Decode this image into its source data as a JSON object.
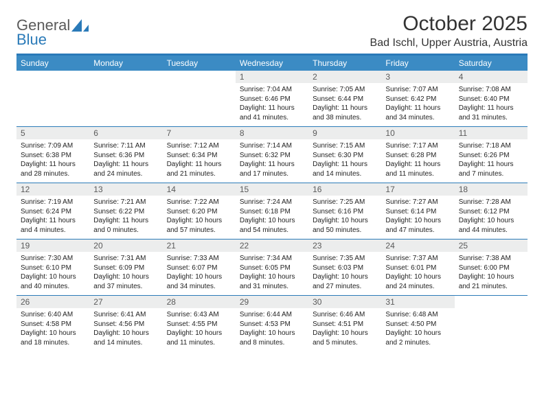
{
  "logo": {
    "word1": "General",
    "word2": "Blue"
  },
  "title": "October 2025",
  "location": "Bad Ischl, Upper Austria, Austria",
  "dayNames": [
    "Sunday",
    "Monday",
    "Tuesday",
    "Wednesday",
    "Thursday",
    "Friday",
    "Saturday"
  ],
  "colors": {
    "headerBar": "#3b8bc4",
    "accent": "#2a7ab8",
    "daynumBg": "#eceded",
    "text": "#222222"
  },
  "weeks": [
    [
      {
        "n": "",
        "empty": true
      },
      {
        "n": "",
        "empty": true
      },
      {
        "n": "",
        "empty": true
      },
      {
        "n": "1",
        "sr": "7:04 AM",
        "ss": "6:46 PM",
        "dl": "11 hours and 41 minutes."
      },
      {
        "n": "2",
        "sr": "7:05 AM",
        "ss": "6:44 PM",
        "dl": "11 hours and 38 minutes."
      },
      {
        "n": "3",
        "sr": "7:07 AM",
        "ss": "6:42 PM",
        "dl": "11 hours and 34 minutes."
      },
      {
        "n": "4",
        "sr": "7:08 AM",
        "ss": "6:40 PM",
        "dl": "11 hours and 31 minutes."
      }
    ],
    [
      {
        "n": "5",
        "sr": "7:09 AM",
        "ss": "6:38 PM",
        "dl": "11 hours and 28 minutes."
      },
      {
        "n": "6",
        "sr": "7:11 AM",
        "ss": "6:36 PM",
        "dl": "11 hours and 24 minutes."
      },
      {
        "n": "7",
        "sr": "7:12 AM",
        "ss": "6:34 PM",
        "dl": "11 hours and 21 minutes."
      },
      {
        "n": "8",
        "sr": "7:14 AM",
        "ss": "6:32 PM",
        "dl": "11 hours and 17 minutes."
      },
      {
        "n": "9",
        "sr": "7:15 AM",
        "ss": "6:30 PM",
        "dl": "11 hours and 14 minutes."
      },
      {
        "n": "10",
        "sr": "7:17 AM",
        "ss": "6:28 PM",
        "dl": "11 hours and 11 minutes."
      },
      {
        "n": "11",
        "sr": "7:18 AM",
        "ss": "6:26 PM",
        "dl": "11 hours and 7 minutes."
      }
    ],
    [
      {
        "n": "12",
        "sr": "7:19 AM",
        "ss": "6:24 PM",
        "dl": "11 hours and 4 minutes."
      },
      {
        "n": "13",
        "sr": "7:21 AM",
        "ss": "6:22 PM",
        "dl": "11 hours and 0 minutes."
      },
      {
        "n": "14",
        "sr": "7:22 AM",
        "ss": "6:20 PM",
        "dl": "10 hours and 57 minutes."
      },
      {
        "n": "15",
        "sr": "7:24 AM",
        "ss": "6:18 PM",
        "dl": "10 hours and 54 minutes."
      },
      {
        "n": "16",
        "sr": "7:25 AM",
        "ss": "6:16 PM",
        "dl": "10 hours and 50 minutes."
      },
      {
        "n": "17",
        "sr": "7:27 AM",
        "ss": "6:14 PM",
        "dl": "10 hours and 47 minutes."
      },
      {
        "n": "18",
        "sr": "7:28 AM",
        "ss": "6:12 PM",
        "dl": "10 hours and 44 minutes."
      }
    ],
    [
      {
        "n": "19",
        "sr": "7:30 AM",
        "ss": "6:10 PM",
        "dl": "10 hours and 40 minutes."
      },
      {
        "n": "20",
        "sr": "7:31 AM",
        "ss": "6:09 PM",
        "dl": "10 hours and 37 minutes."
      },
      {
        "n": "21",
        "sr": "7:33 AM",
        "ss": "6:07 PM",
        "dl": "10 hours and 34 minutes."
      },
      {
        "n": "22",
        "sr": "7:34 AM",
        "ss": "6:05 PM",
        "dl": "10 hours and 31 minutes."
      },
      {
        "n": "23",
        "sr": "7:35 AM",
        "ss": "6:03 PM",
        "dl": "10 hours and 27 minutes."
      },
      {
        "n": "24",
        "sr": "7:37 AM",
        "ss": "6:01 PM",
        "dl": "10 hours and 24 minutes."
      },
      {
        "n": "25",
        "sr": "7:38 AM",
        "ss": "6:00 PM",
        "dl": "10 hours and 21 minutes."
      }
    ],
    [
      {
        "n": "26",
        "sr": "6:40 AM",
        "ss": "4:58 PM",
        "dl": "10 hours and 18 minutes."
      },
      {
        "n": "27",
        "sr": "6:41 AM",
        "ss": "4:56 PM",
        "dl": "10 hours and 14 minutes."
      },
      {
        "n": "28",
        "sr": "6:43 AM",
        "ss": "4:55 PM",
        "dl": "10 hours and 11 minutes."
      },
      {
        "n": "29",
        "sr": "6:44 AM",
        "ss": "4:53 PM",
        "dl": "10 hours and 8 minutes."
      },
      {
        "n": "30",
        "sr": "6:46 AM",
        "ss": "4:51 PM",
        "dl": "10 hours and 5 minutes."
      },
      {
        "n": "31",
        "sr": "6:48 AM",
        "ss": "4:50 PM",
        "dl": "10 hours and 2 minutes."
      },
      {
        "n": "",
        "empty": true
      }
    ]
  ],
  "labels": {
    "sunrise": "Sunrise: ",
    "sunset": "Sunset: ",
    "daylight": "Daylight: "
  }
}
